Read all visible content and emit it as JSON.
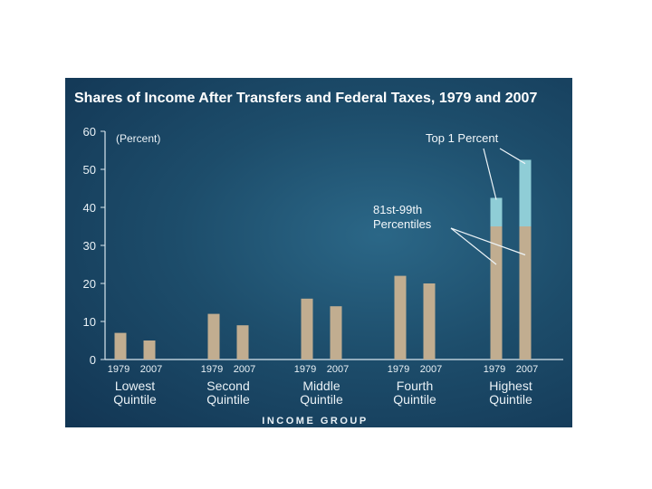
{
  "chart_data": {
    "type": "bar",
    "title": "Shares of Income After Transfers and Federal Taxes, 1979 and 2007",
    "unit_label": "(Percent)",
    "xlabel": "INCOME GROUP",
    "ylim": [
      0,
      60
    ],
    "yticks": [
      "0",
      "10",
      "20",
      "30",
      "40",
      "50",
      "60"
    ],
    "grid": false,
    "categories": [
      {
        "name": [
          "Lowest",
          "Quintile"
        ],
        "years": [
          "1979",
          "2007"
        ]
      },
      {
        "name": [
          "Second",
          "Quintile"
        ],
        "years": [
          "1979",
          "2007"
        ]
      },
      {
        "name": [
          "Middle",
          "Quintile"
        ],
        "years": [
          "1979",
          "2007"
        ]
      },
      {
        "name": [
          "Fourth",
          "Quintile"
        ],
        "years": [
          "1979",
          "2007"
        ]
      },
      {
        "name": [
          "Highest",
          "Quintile"
        ],
        "years": [
          "1979",
          "2007"
        ]
      }
    ],
    "values": [
      [
        7,
        5
      ],
      [
        12,
        9
      ],
      [
        16,
        14
      ],
      [
        22,
        20
      ],
      [
        42.5,
        52.5
      ]
    ],
    "highest_breakdown": {
      "percentiles_81_99": [
        35,
        35
      ],
      "top_1_percent": [
        7.5,
        17.5
      ]
    },
    "annotations": {
      "top1": "Top 1 Percent",
      "mid": [
        "81st-99th",
        "Percentiles"
      ]
    },
    "colors": {
      "bar": "#c1ad90",
      "top1": "#8fcdd6",
      "axis": "#d9e6ee",
      "text": "#e9f1f6"
    }
  }
}
